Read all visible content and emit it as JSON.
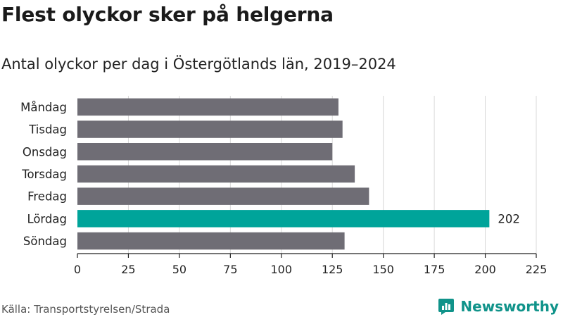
{
  "title": "Flest olyckor sker på helgerna",
  "subtitle": "Antal olyckor per dag i Östergötlands län, 2019–2024",
  "source": "Källa: Transportstyrelsen/Strada",
  "brand": {
    "name": "Newsworthy",
    "icon": "newsworthy-logo-icon",
    "color": "#10938a"
  },
  "colors": {
    "default_bar": "#6f6d75",
    "highlight_bar": "#00a49a",
    "grid": "#d8d8d8",
    "axis": "#222222"
  },
  "chart_data": {
    "type": "bar",
    "orientation": "horizontal",
    "title": "Flest olyckor sker på helgerna",
    "subtitle": "Antal olyckor per dag i Östergötlands län, 2019–2024",
    "xlabel": "",
    "ylabel": "",
    "categories": [
      "Måndag",
      "Tisdag",
      "Onsdag",
      "Torsdag",
      "Fredag",
      "Lördag",
      "Söndag"
    ],
    "values": [
      128,
      130,
      125,
      136,
      143,
      202,
      131
    ],
    "highlight_index": 5,
    "data_labels": [
      {
        "category": "Lördag",
        "value": 202,
        "text": "202"
      }
    ],
    "xlim": [
      0,
      225
    ],
    "x_ticks": [
      0,
      25,
      50,
      75,
      100,
      125,
      150,
      175,
      200,
      225
    ],
    "grid": "vertical",
    "legend": "none"
  }
}
